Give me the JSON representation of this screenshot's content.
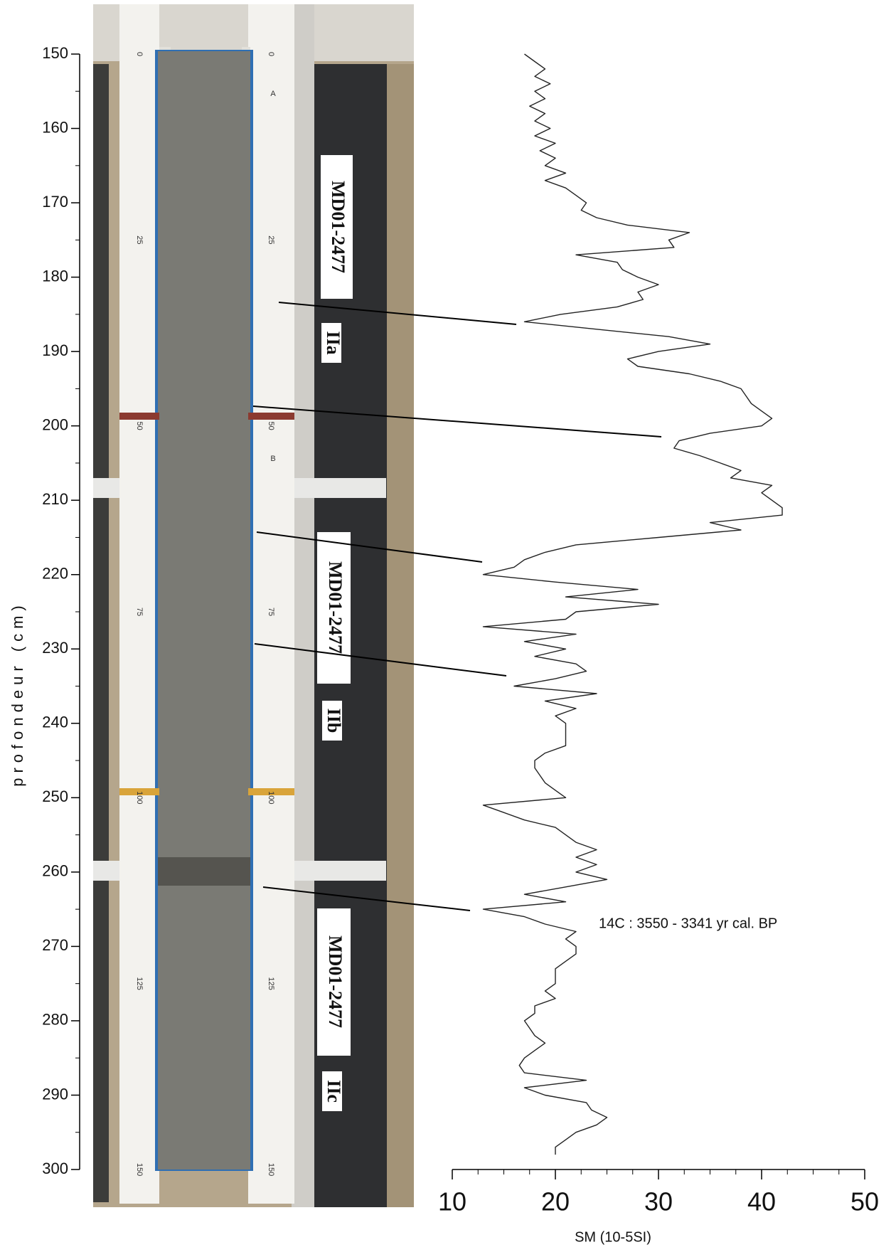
{
  "chart_data": {
    "type": "line",
    "y_axis_label": "profondeur (cm)",
    "x_axis_label": "SM (10-5SI)",
    "annotation": "14C : 3550 - 3341 yr cal. BP",
    "core_labels": [
      "MD01-2477",
      "MD01-2477",
      "MD01-2477"
    ],
    "section_labels": [
      "IIa",
      "IIb",
      "IIc"
    ],
    "segment_labels": [
      "A",
      "B"
    ],
    "core_ruler_ticks": [
      0,
      25,
      50,
      75,
      100,
      125,
      150
    ],
    "xlim": [
      150,
      300
    ],
    "xticks": [
      150,
      160,
      170,
      180,
      190,
      200,
      210,
      220,
      230,
      240,
      250,
      260,
      270,
      280,
      290,
      300
    ],
    "ylim": [
      10,
      50
    ],
    "yticks": [
      10,
      20,
      30,
      40,
      50
    ],
    "color": "#222222",
    "x": [
      150,
      151,
      152,
      153,
      154,
      155,
      156,
      157,
      158,
      159,
      160,
      161,
      162,
      163,
      164,
      165,
      166,
      167,
      168,
      169,
      170,
      171,
      172,
      173,
      174,
      175,
      176,
      177,
      178,
      179,
      180,
      181,
      182,
      183,
      184,
      185,
      186,
      187,
      188,
      189,
      190,
      191,
      192,
      193,
      194,
      195,
      196,
      197,
      198,
      199,
      200,
      201,
      202,
      203,
      204,
      205,
      206,
      207,
      208,
      209,
      210,
      211,
      212,
      213,
      214,
      215,
      216,
      217,
      218,
      219,
      220,
      221,
      222,
      223,
      224,
      225,
      226,
      227,
      228,
      229,
      230,
      231,
      232,
      233,
      234,
      235,
      236,
      237,
      238,
      239,
      240,
      241,
      242,
      243,
      244,
      245,
      246,
      247,
      248,
      249,
      250,
      251,
      252,
      253,
      254,
      255,
      256,
      257,
      258,
      259,
      260,
      261,
      262,
      263,
      264,
      265,
      266,
      267,
      268,
      269,
      270,
      271,
      272,
      273,
      274,
      275,
      276,
      277,
      278,
      279,
      280,
      281,
      282,
      283,
      284,
      285,
      286,
      287,
      288,
      289,
      290,
      291,
      292,
      293,
      294,
      295,
      296,
      297,
      298
    ],
    "values": [
      17,
      18,
      19,
      18,
      19.5,
      18,
      19,
      17.5,
      19,
      18,
      19.5,
      18,
      20,
      18.5,
      20,
      19,
      21,
      19,
      21,
      22,
      23,
      22.5,
      24,
      27,
      33,
      31,
      31.5,
      22,
      26,
      26.5,
      28,
      30,
      28,
      28.5,
      26,
      20.5,
      17,
      24,
      31,
      35,
      30,
      27,
      28,
      33,
      36,
      38,
      38.5,
      39,
      40,
      41,
      40,
      35,
      32,
      31.5,
      34,
      36,
      38,
      37,
      41,
      40,
      41,
      42,
      42,
      35,
      38,
      30,
      22,
      19,
      17,
      16,
      13,
      20,
      28,
      21,
      30,
      22,
      21,
      13,
      22,
      17,
      21,
      18,
      22,
      23,
      20,
      16,
      24,
      19,
      22,
      20,
      21,
      21,
      21,
      21,
      19,
      18,
      18,
      18.5,
      19,
      20,
      21,
      13,
      15,
      17,
      20,
      21,
      22,
      24,
      22,
      24,
      22,
      25,
      21,
      17,
      21,
      13,
      17,
      19,
      22,
      21,
      22,
      22,
      21,
      20,
      20,
      20,
      19,
      20,
      18,
      18,
      17,
      17.5,
      18,
      19,
      18,
      17,
      16.5,
      17,
      23,
      17,
      19,
      23,
      23.5,
      25,
      24,
      22,
      21,
      20,
      20
    ]
  }
}
